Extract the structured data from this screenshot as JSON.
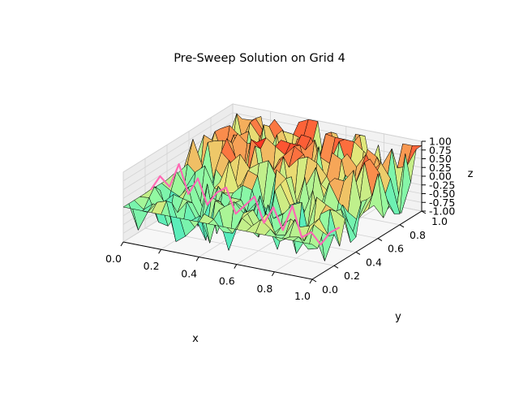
{
  "chart_data": {
    "type": "surface3d",
    "title": "Pre-Sweep Solution on Grid 4",
    "xlabel": "x",
    "ylabel": "y",
    "zlabel": "z",
    "x_ticks": [
      0.0,
      0.2,
      0.4,
      0.6,
      0.8,
      1.0
    ],
    "y_ticks": [
      0.0,
      0.2,
      0.4,
      0.6,
      0.8,
      1.0
    ],
    "z_ticks": [
      -1.0,
      -0.75,
      -0.5,
      -0.25,
      0.0,
      0.25,
      0.5,
      0.75,
      1.0
    ],
    "xlim": [
      0,
      1
    ],
    "ylim": [
      0,
      1
    ],
    "zlim": [
      -1,
      1
    ],
    "grid": true,
    "colormap": "rainbow",
    "overlay_line_color": "#ff69b4",
    "surface_note": "oscillatory noisy surface with z values spanning about -1 to 1; edges near y=0 and x=0 lie close to z=0",
    "overlay_line": {
      "name": "",
      "x": [
        0.0,
        0.05,
        0.1,
        0.15,
        0.2,
        0.25,
        0.3,
        0.35,
        0.4,
        0.45,
        0.5,
        0.55,
        0.6,
        0.65,
        0.7,
        0.75,
        0.8,
        0.85,
        0.9,
        0.95,
        1.0
      ],
      "y": [
        0.25,
        0.25,
        0.25,
        0.25,
        0.25,
        0.25,
        0.25,
        0.25,
        0.25,
        0.25,
        0.25,
        0.25,
        0.25,
        0.25,
        0.25,
        0.25,
        0.25,
        0.25,
        0.25,
        0.25,
        0.25
      ],
      "z": [
        0.0,
        0.45,
        0.2,
        0.9,
        0.1,
        0.6,
        -0.1,
        0.3,
        0.5,
        -0.2,
        0.1,
        0.4,
        -0.3,
        0.2,
        -0.4,
        0.35,
        -0.5,
        -0.3,
        -0.6,
        -0.2,
        0.0
      ]
    }
  }
}
